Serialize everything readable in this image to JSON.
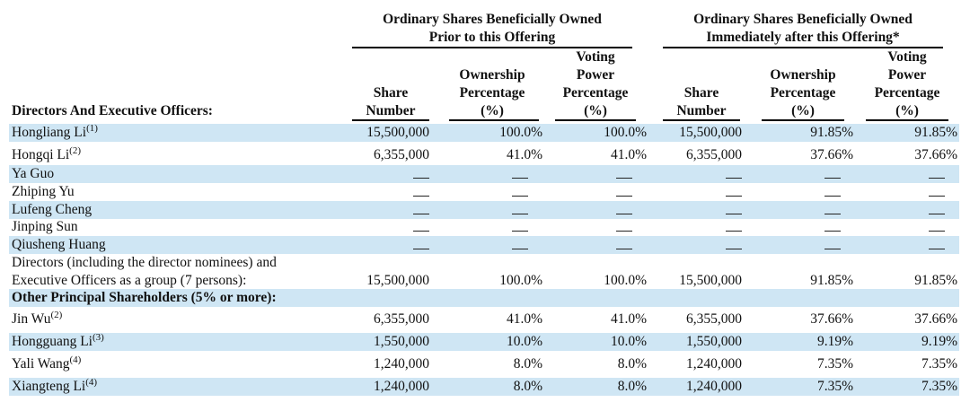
{
  "groups": [
    {
      "line1": "Ordinary Shares Beneficially Owned",
      "line2": "Prior to this Offering"
    },
    {
      "line1": "Ordinary Shares Beneficially Owned",
      "line2": "Immediately after this Offering*"
    }
  ],
  "columns": {
    "first": "Directors And Executive Officers:",
    "share_number": [
      "Share",
      "Number"
    ],
    "ownership": [
      "Ownership",
      "Percentage",
      "(%)"
    ],
    "voting": [
      "Voting",
      "Power",
      "Percentage",
      "(%)"
    ]
  },
  "rows": [
    {
      "name": "Hongliang Li",
      "note": "(1)",
      "values": [
        "15,500,000",
        "100.0%",
        "100.0%",
        "15,500,000",
        "91.85%",
        "91.85%"
      ]
    },
    {
      "name": "Hongqi Li",
      "note": "(2)",
      "values": [
        "6,355,000",
        "41.0%",
        "41.0%",
        "6,355,000",
        "37.66%",
        "37.66%"
      ]
    },
    {
      "name": "Ya Guo",
      "note": "",
      "values": [
        "—",
        "—",
        "—",
        "—",
        "—",
        "—"
      ]
    },
    {
      "name": "Zhiping Yu",
      "note": "",
      "values": [
        "—",
        "—",
        "—",
        "—",
        "—",
        "—"
      ]
    },
    {
      "name": "Lufeng Cheng",
      "note": "",
      "values": [
        "—",
        "—",
        "—",
        "—",
        "—",
        "—"
      ]
    },
    {
      "name": "Jinping Sun",
      "note": "",
      "values": [
        "—",
        "—",
        "—",
        "—",
        "—",
        "—"
      ]
    },
    {
      "name": "Qiusheng Huang",
      "note": "",
      "values": [
        "—",
        "—",
        "—",
        "—",
        "—",
        "—"
      ]
    },
    {
      "name_line1": "Directors (including the director nominees) and",
      "name_line2": "Executive Officers as a group (7 persons):",
      "values": [
        "15,500,000",
        "100.0%",
        "100.0%",
        "15,500,000",
        "91.85%",
        "91.85%"
      ]
    },
    {
      "name": "Other Principal Shareholders (5% or more):"
    },
    {
      "name": "Jin Wu",
      "note": "(2)",
      "values": [
        "6,355,000",
        "41.0%",
        "41.0%",
        "6,355,000",
        "37.66%",
        "37.66%"
      ]
    },
    {
      "name": "Hongguang Li",
      "note": "(3)",
      "values": [
        "1,550,000",
        "10.0%",
        "10.0%",
        "1,550,000",
        "9.19%",
        "9.19%"
      ]
    },
    {
      "name": "Yali Wang",
      "note": "(4)",
      "values": [
        "1,240,000",
        "8.0%",
        "8.0%",
        "1,240,000",
        "7.35%",
        "7.35%"
      ]
    },
    {
      "name": "Xiangteng Li",
      "note": "(4)",
      "values": [
        "1,240,000",
        "8.0%",
        "8.0%",
        "1,240,000",
        "7.35%",
        "7.35%"
      ]
    }
  ]
}
